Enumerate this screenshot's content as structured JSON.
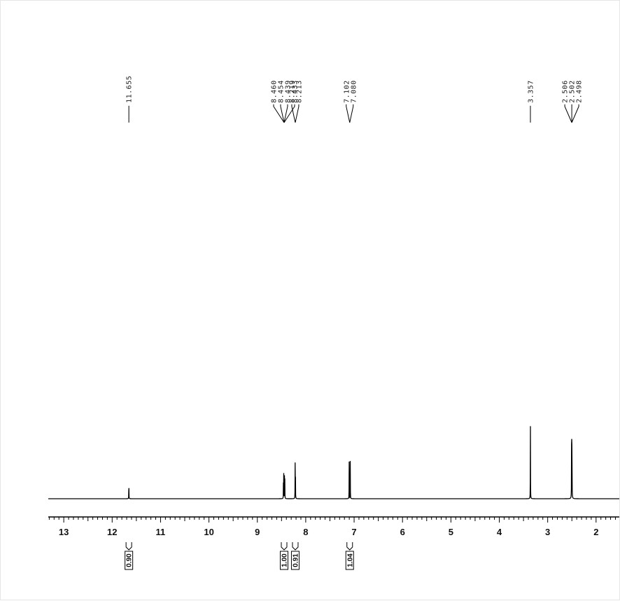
{
  "chart_data": {
    "type": "line",
    "title": "",
    "xlabel": "",
    "ylabel": "",
    "x_axis": {
      "reversed": true,
      "xlim": [
        13.32,
        1.52
      ],
      "ticks": [
        13,
        12,
        11,
        10,
        9,
        8,
        7,
        6,
        5,
        4,
        3,
        2
      ],
      "tick_labels": [
        "13",
        "12",
        "11",
        "10",
        "9",
        "8",
        "7",
        "6",
        "5",
        "4",
        "3",
        "2"
      ]
    },
    "grid": false,
    "legend": "none",
    "line_color": "#000000",
    "peaks": [
      {
        "ppm": 11.655,
        "height": 0.27
      },
      {
        "ppm": 8.46,
        "height": 0.29
      },
      {
        "ppm": 8.454,
        "height": 0.3
      },
      {
        "ppm": 8.439,
        "height": 0.3
      },
      {
        "ppm": 8.433,
        "height": 0.29
      },
      {
        "ppm": 8.219,
        "height": 0.43
      },
      {
        "ppm": 8.213,
        "height": 0.42
      },
      {
        "ppm": 7.102,
        "height": 0.47
      },
      {
        "ppm": 7.08,
        "height": 0.48
      },
      {
        "ppm": 3.357,
        "height": 1.0
      },
      {
        "ppm": 2.506,
        "height": 0.8
      },
      {
        "ppm": 2.502,
        "height": 0.81
      },
      {
        "ppm": 2.498,
        "height": 0.8
      }
    ],
    "peak_label_groups": [
      {
        "labels": [
          "11.655"
        ],
        "target_ppm": 11.655
      },
      {
        "labels": [
          "8.460",
          "8.454",
          "8.439",
          "8.433"
        ],
        "target_ppm": 8.447
      },
      {
        "labels": [
          "8.219",
          "8.213"
        ],
        "target_ppm": 8.216
      },
      {
        "labels": [
          "7.102",
          "7.080"
        ],
        "target_ppm": 7.091
      },
      {
        "labels": [
          "3.357"
        ],
        "target_ppm": 3.357
      },
      {
        "labels": [
          "2.506",
          "2.502",
          "2.498"
        ],
        "target_ppm": 2.502
      }
    ],
    "integrals": [
      {
        "ppm": 11.655,
        "value": "0.90"
      },
      {
        "ppm": 8.447,
        "value": "1.00"
      },
      {
        "ppm": 8.216,
        "value": "0.91"
      },
      {
        "ppm": 7.091,
        "value": "1.04"
      }
    ]
  }
}
